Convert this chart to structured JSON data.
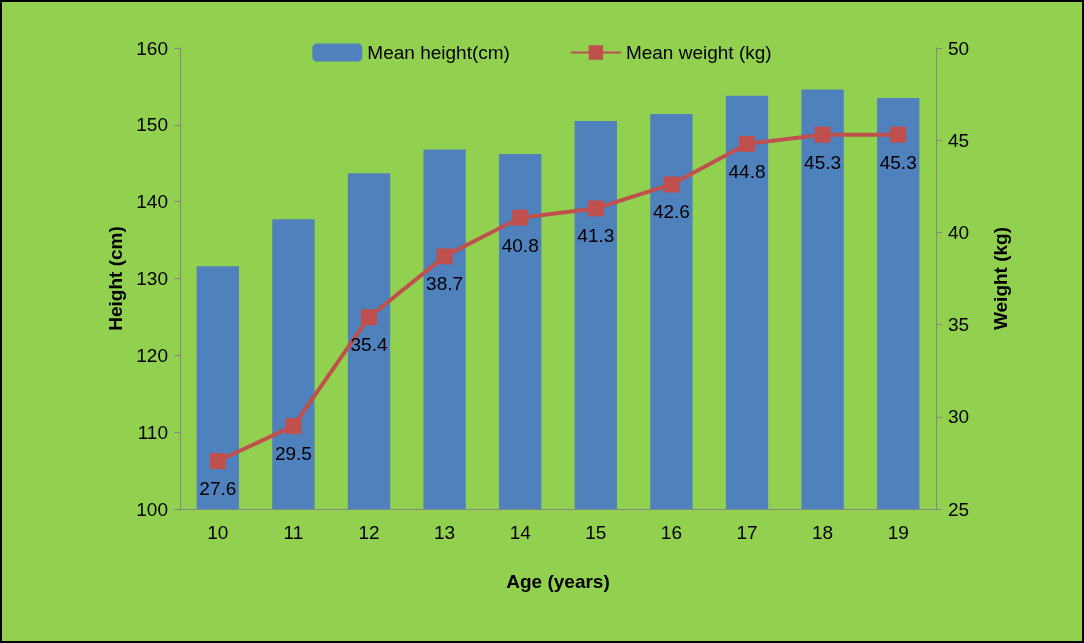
{
  "chart_data": {
    "type": "bar",
    "xlabel": "Age (years)",
    "ylabel": "Height (cm)",
    "y2label": "Weight (kg)",
    "categories": [
      "10",
      "11",
      "12",
      "13",
      "14",
      "15",
      "16",
      "17",
      "18",
      "19"
    ],
    "series": [
      {
        "name": "Mean height(cm)",
        "color": "#4f81bd",
        "values": [
          131.6,
          137.7,
          143.7,
          146.8,
          146.2,
          150.5,
          151.4,
          153.8,
          154.6,
          153.5
        ]
      },
      {
        "name": "Mean weight (kg)",
        "type": "line",
        "axis": "y2",
        "color": "#c0504d",
        "marker": "square",
        "values": [
          27.6,
          29.5,
          35.4,
          38.7,
          40.8,
          41.3,
          42.6,
          44.8,
          45.3,
          45.3
        ],
        "value_labels": [
          "27.6",
          "29.5",
          "35.4",
          "38.7",
          "40.8",
          "41.3",
          "42.6",
          "44.8",
          "45.3",
          "45.3"
        ]
      }
    ],
    "ylim": [
      100,
      160
    ],
    "yticks": [
      100,
      110,
      120,
      130,
      140,
      150,
      160
    ],
    "y2lim": [
      25,
      50
    ],
    "y2ticks": [
      25,
      30,
      35,
      40,
      45,
      50
    ],
    "grid": false,
    "legend": "top"
  }
}
